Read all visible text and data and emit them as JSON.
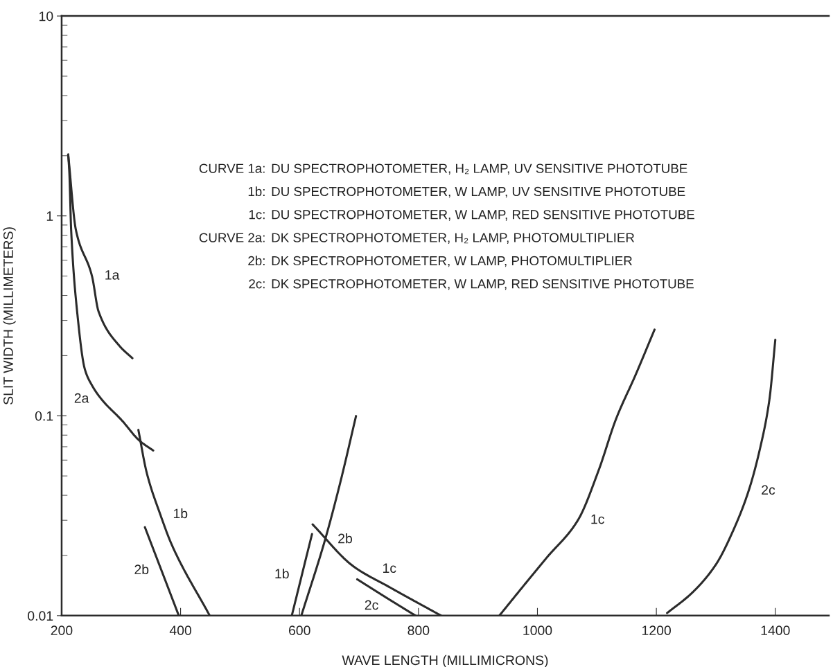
{
  "chart_data": {
    "type": "line",
    "xlabel": "WAVE LENGTH (MILLIMICRONS)",
    "ylabel": "SLIT WIDTH (MILLIMETERS)",
    "log": "y",
    "xlim": [
      200,
      1490
    ],
    "ylim": [
      0.01,
      10
    ],
    "xticks": [
      200,
      400,
      600,
      800,
      1000,
      1200,
      1400
    ],
    "yticks": [
      0.01,
      0.1,
      1,
      10
    ],
    "grid": false,
    "legend": false,
    "marker": "none",
    "line_style": "solid",
    "series": [
      {
        "color": "#2b2b2b",
        "x": [
          211,
          224,
          251,
          262,
          297,
          319
        ],
        "values": [
          2.03,
          0.85,
          0.5,
          0.333,
          0.224,
          0.194
        ]
      },
      {
        "color": "#2b2b2b",
        "x": [
          211,
          213,
          216,
          226,
          239,
          251,
          267,
          301,
          331,
          354
        ],
        "values": [
          2.03,
          1.64,
          0.85,
          0.333,
          0.171,
          0.142,
          0.121,
          0.095,
          0.075,
          0.067
        ]
      },
      {
        "color": "#2b2b2b",
        "x": [
          329,
          343,
          366,
          385,
          449
        ],
        "values": [
          0.085,
          0.052,
          0.032,
          0.0227,
          0.01
        ]
      },
      {
        "color": "#2b2b2b",
        "x": [
          340,
          368,
          397
        ],
        "values": [
          0.0277,
          0.0168,
          0.01
        ]
      },
      {
        "color": "#2b2b2b",
        "x": [
          587,
          604,
          621
        ],
        "values": [
          0.01,
          0.016,
          0.0256
        ]
      },
      {
        "color": "#2b2b2b",
        "x": [
          603,
          643,
          669,
          695
        ],
        "values": [
          0.01,
          0.024,
          0.047,
          0.0997
        ]
      },
      {
        "color": "#2b2b2b",
        "x": [
          622,
          690,
          751,
          838
        ],
        "values": [
          0.0286,
          0.0177,
          0.0139,
          0.01
        ]
      },
      {
        "color": "#2b2b2b",
        "x": [
          697,
          721,
          746,
          795
        ],
        "values": [
          0.0152,
          0.0137,
          0.0123,
          0.01
        ]
      },
      {
        "color": "#2b2b2b",
        "x": [
          936,
          980,
          1015,
          1068,
          1103,
          1132,
          1165,
          1197
        ],
        "values": [
          0.01,
          0.0145,
          0.0194,
          0.03,
          0.0534,
          0.096,
          0.16,
          0.27
        ]
      },
      {
        "color": "#2b2b2b",
        "x": [
          1218,
          1260,
          1300,
          1330,
          1355,
          1375,
          1390,
          1400
        ],
        "values": [
          0.0103,
          0.013,
          0.018,
          0.027,
          0.042,
          0.07,
          0.12,
          0.24
        ]
      }
    ],
    "annotations": [
      "CURVE 1a: DU SPECTROPHOTOMETER, H₂ LAMP, UV SENSITIVE PHOTOTUBE",
      "1b: DU SPECTROPHOTOMETER, W LAMP, UV SENSITIVE PHOTOTUBE",
      "1c: DU SPECTROPHOTOMETER, W LAMP, RED SENSITIVE PHOTOTUBE",
      "CURVE 2a: DK SPECTROPHOTOMETER, H₂ LAMP, PHOTOMULTIPLIER",
      "2b: DK SPECTROPHOTOMETER, W LAMP, PHOTOMULTIPLIER",
      "2c: DK SPECTROPHOTOMETER, W LAMP, RED SENSITIVE PHOTOTUBE",
      {
        "text": "1a",
        "x": 251,
        "y": 0.5
      },
      {
        "text": "2a",
        "x": 267,
        "y": 0.121
      },
      {
        "text": "1b",
        "x": 366,
        "y": 0.032
      },
      {
        "text": "2b",
        "x": 368,
        "y": 0.0168
      },
      {
        "text": "1b",
        "x": 604,
        "y": 0.016
      },
      {
        "text": "2b",
        "x": 643,
        "y": 0.024
      },
      {
        "text": "1c",
        "x": 751,
        "y": 0.0139
      },
      {
        "text": "2c",
        "x": 721,
        "y": 0.0137
      },
      {
        "text": "1c",
        "x": 1068,
        "y": 0.03
      },
      {
        "text": "2c",
        "x": 1355,
        "y": 0.042
      }
    ]
  }
}
